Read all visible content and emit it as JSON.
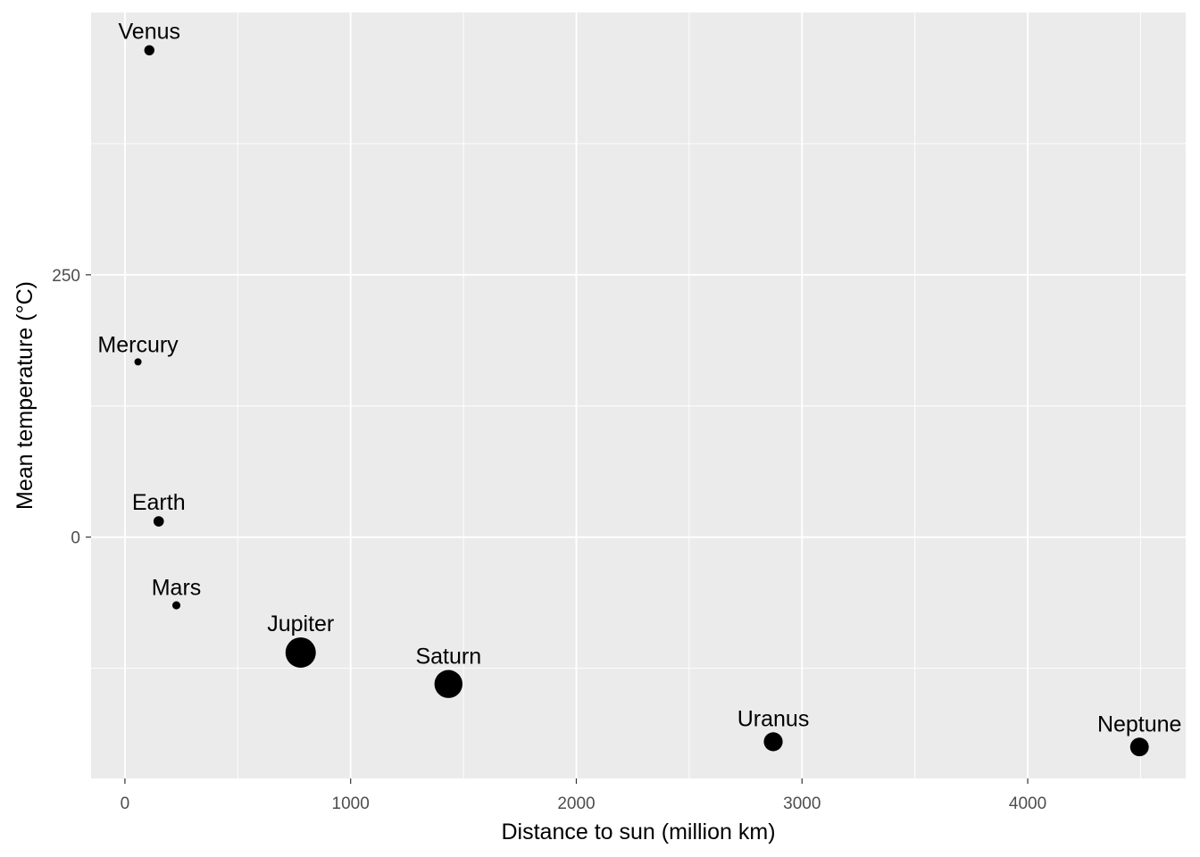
{
  "chart_data": {
    "type": "scatter",
    "title": "",
    "xlabel": "Distance to sun (million km)",
    "ylabel": "Mean temperature (°C)",
    "xlim": [
      -150,
      4700
    ],
    "ylim": [
      -230,
      500
    ],
    "xticks": [
      0,
      1000,
      2000,
      3000,
      4000
    ],
    "yticks": [
      0,
      250
    ],
    "grid": true,
    "legend": "none",
    "size_encoding": "planet diameter",
    "points": [
      {
        "label": "Mercury",
        "x": 57.9,
        "y": 167,
        "size": 4879
      },
      {
        "label": "Venus",
        "x": 108.2,
        "y": 464,
        "size": 12104
      },
      {
        "label": "Earth",
        "x": 149.6,
        "y": 15,
        "size": 12756
      },
      {
        "label": "Mars",
        "x": 227.9,
        "y": -65,
        "size": 6792
      },
      {
        "label": "Jupiter",
        "x": 778.6,
        "y": -110,
        "size": 142984
      },
      {
        "label": "Saturn",
        "x": 1433.5,
        "y": -140,
        "size": 120536
      },
      {
        "label": "Uranus",
        "x": 2872.5,
        "y": -195,
        "size": 51118
      },
      {
        "label": "Neptune",
        "x": 4495.1,
        "y": -200,
        "size": 49528
      }
    ],
    "colors": {
      "panel": "#ebebeb",
      "grid": "#ffffff",
      "point": "#000000",
      "tick_text": "#4d4d4d",
      "tick_mark": "#333333"
    }
  }
}
